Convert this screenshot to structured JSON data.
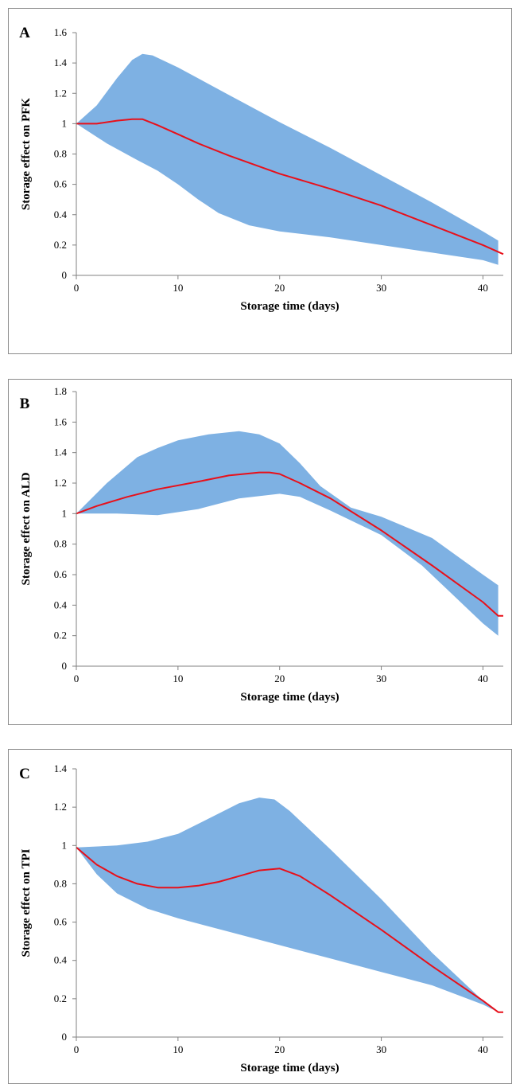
{
  "colors": {
    "band": "#7eb1e3",
    "line": "#e8101a",
    "axis": "#808080"
  },
  "chart_data": [
    {
      "type": "area",
      "panel_label": "A",
      "xlabel": "Storage time (days)",
      "ylabel": "Storage effect on PFK",
      "xlim": [
        0,
        42
      ],
      "ylim": [
        0,
        1.6
      ],
      "x_ticks": [
        "0",
        "10",
        "20",
        "30",
        "40"
      ],
      "y_ticks": [
        "0",
        "0.2",
        "0.4",
        "0.6",
        "0.8",
        "1",
        "1.2",
        "1.4",
        "1.6"
      ],
      "grid": false,
      "series": [
        {
          "role": "band_upper",
          "x": [
            0,
            2,
            4,
            5.5,
            6.5,
            7.5,
            10,
            15,
            20,
            25,
            30,
            35,
            40,
            41.5
          ],
          "y": [
            1.0,
            1.12,
            1.3,
            1.42,
            1.46,
            1.45,
            1.37,
            1.19,
            1.01,
            0.84,
            0.66,
            0.48,
            0.29,
            0.23
          ]
        },
        {
          "role": "band_lower",
          "x": [
            0,
            3,
            6,
            8,
            10,
            12,
            14,
            17,
            20,
            25,
            30,
            35,
            40,
            41.5
          ],
          "y": [
            1.0,
            0.87,
            0.76,
            0.69,
            0.6,
            0.5,
            0.41,
            0.33,
            0.29,
            0.25,
            0.2,
            0.15,
            0.1,
            0.07
          ]
        },
        {
          "role": "median",
          "x": [
            0,
            2,
            4,
            5.5,
            6.5,
            8,
            10,
            12,
            15,
            20,
            25,
            30,
            35,
            40,
            42
          ],
          "y": [
            1.0,
            1.0,
            1.02,
            1.03,
            1.03,
            0.99,
            0.93,
            0.87,
            0.79,
            0.67,
            0.57,
            0.46,
            0.33,
            0.2,
            0.14
          ]
        }
      ]
    },
    {
      "type": "area",
      "panel_label": "B",
      "xlabel": "Storage time (days)",
      "ylabel": "Storage effect on ALD",
      "xlim": [
        0,
        42
      ],
      "ylim": [
        0,
        1.8
      ],
      "x_ticks": [
        "0",
        "10",
        "20",
        "30",
        "40"
      ],
      "y_ticks": [
        "0",
        "0.2",
        "0.4",
        "0.6",
        "0.8",
        "1",
        "1.2",
        "1.4",
        "1.6",
        "1.8"
      ],
      "grid": false,
      "series": [
        {
          "role": "band_upper",
          "x": [
            0,
            3,
            6,
            8,
            10,
            13,
            16,
            18,
            20,
            22,
            24,
            27,
            30,
            35,
            40,
            41.5
          ],
          "y": [
            1.0,
            1.2,
            1.37,
            1.43,
            1.48,
            1.52,
            1.54,
            1.52,
            1.46,
            1.33,
            1.18,
            1.04,
            0.98,
            0.84,
            0.6,
            0.53
          ]
        },
        {
          "role": "band_lower",
          "x": [
            0,
            4,
            8,
            12,
            16,
            20,
            22,
            25,
            30,
            34,
            37,
            40,
            41.5
          ],
          "y": [
            1.0,
            1.0,
            0.99,
            1.03,
            1.1,
            1.13,
            1.11,
            1.02,
            0.86,
            0.66,
            0.47,
            0.28,
            0.2
          ]
        },
        {
          "role": "median",
          "x": [
            0,
            2,
            5,
            8,
            12,
            15,
            18,
            19,
            20,
            22,
            25,
            30,
            35,
            40,
            41.5,
            42
          ],
          "y": [
            1.0,
            1.05,
            1.11,
            1.16,
            1.21,
            1.25,
            1.27,
            1.27,
            1.26,
            1.2,
            1.1,
            0.89,
            0.66,
            0.42,
            0.33,
            0.33
          ]
        }
      ]
    },
    {
      "type": "area",
      "panel_label": "C",
      "xlabel": "Storage time (days)",
      "ylabel": "Storage effect on TPI",
      "xlim": [
        0,
        42
      ],
      "ylim": [
        0,
        1.4
      ],
      "x_ticks": [
        "0",
        "10",
        "20",
        "30",
        "40"
      ],
      "y_ticks": [
        "0",
        "0.2",
        "0.4",
        "0.6",
        "0.8",
        "1",
        "1.2",
        "1.4"
      ],
      "grid": false,
      "series": [
        {
          "role": "band_upper",
          "x": [
            0,
            4,
            7,
            10,
            13,
            16,
            18,
            19.5,
            21,
            25,
            30,
            35,
            40,
            41.5
          ],
          "y": [
            0.99,
            1.0,
            1.02,
            1.06,
            1.14,
            1.22,
            1.25,
            1.24,
            1.18,
            0.98,
            0.72,
            0.44,
            0.19,
            0.13
          ]
        },
        {
          "role": "band_lower",
          "x": [
            0,
            2,
            4,
            7,
            10,
            15,
            20,
            25,
            30,
            35,
            40,
            41.5
          ],
          "y": [
            0.99,
            0.85,
            0.75,
            0.67,
            0.62,
            0.55,
            0.48,
            0.41,
            0.34,
            0.27,
            0.17,
            0.13
          ]
        },
        {
          "role": "median",
          "x": [
            0,
            2,
            4,
            6,
            8,
            10,
            12,
            14,
            16,
            18,
            20,
            22,
            25,
            30,
            35,
            40,
            41.5,
            42
          ],
          "y": [
            0.99,
            0.9,
            0.84,
            0.8,
            0.78,
            0.78,
            0.79,
            0.81,
            0.84,
            0.87,
            0.88,
            0.84,
            0.74,
            0.56,
            0.37,
            0.19,
            0.13,
            0.13
          ]
        }
      ]
    }
  ]
}
